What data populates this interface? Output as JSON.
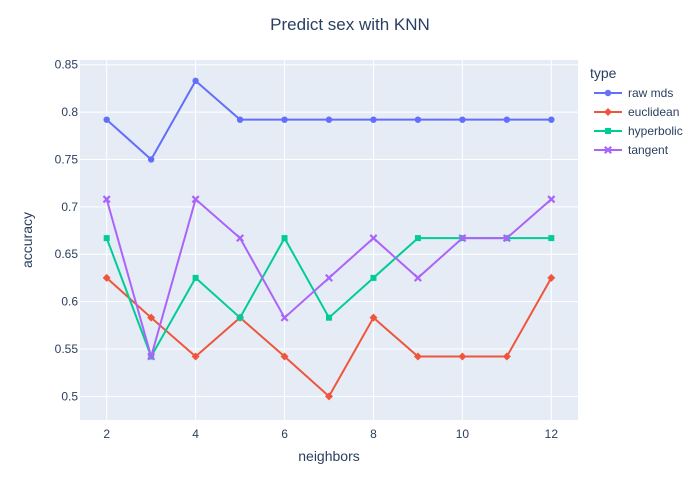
{
  "chart_data": {
    "type": "line",
    "title": "Predict sex with KNN",
    "xlabel": "neighbors",
    "ylabel": "accuracy",
    "legend_title": "type",
    "legend_position": "top-right",
    "xlim": [
      1.4,
      12.6
    ],
    "ylim": [
      0.475,
      0.855
    ],
    "xticks": [
      2,
      4,
      6,
      8,
      10,
      12
    ],
    "yticks": [
      0.5,
      0.55,
      0.6,
      0.65,
      0.7,
      0.75,
      0.8,
      0.85
    ],
    "ytick_labels": [
      "0.5",
      "0.55",
      "0.6",
      "0.65",
      "0.7",
      "0.75",
      "0.8",
      "0.85"
    ],
    "grid": true,
    "plot_background": "#e5ecf6",
    "x": [
      2,
      3,
      4,
      5,
      6,
      7,
      8,
      9,
      10,
      11,
      12
    ],
    "series": [
      {
        "name": "raw mds",
        "color": "#636efa",
        "marker": "circle",
        "values": [
          0.792,
          0.75,
          0.833,
          0.792,
          0.792,
          0.792,
          0.792,
          0.792,
          0.792,
          0.792,
          0.792
        ]
      },
      {
        "name": "euclidean",
        "color": "#ef553b",
        "marker": "diamond",
        "values": [
          0.625,
          0.583,
          0.542,
          0.583,
          0.542,
          0.5,
          0.583,
          0.542,
          0.542,
          0.542,
          0.625
        ]
      },
      {
        "name": "hyperbolic",
        "color": "#00cc96",
        "marker": "square",
        "values": [
          0.667,
          0.542,
          0.625,
          0.583,
          0.667,
          0.583,
          0.625,
          0.667,
          0.667,
          0.667,
          0.667
        ]
      },
      {
        "name": "tangent",
        "color": "#ab63fa",
        "marker": "x",
        "values": [
          0.708,
          0.542,
          0.708,
          0.667,
          0.583,
          0.625,
          0.667,
          0.625,
          0.667,
          0.667,
          0.708
        ]
      }
    ]
  }
}
